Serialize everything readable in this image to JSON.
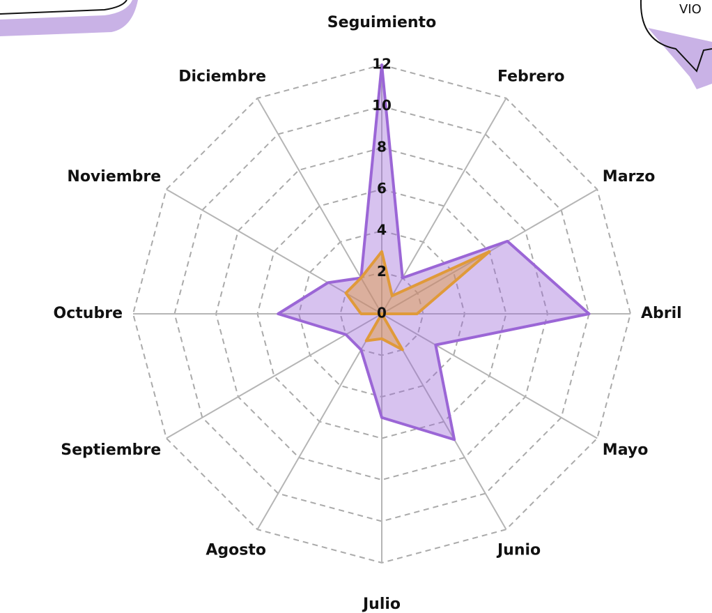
{
  "chart_data": {
    "type": "radar",
    "categories": [
      "Seguimiento",
      "Febrero",
      "Marzo",
      "Abril",
      "Mayo",
      "Junio",
      "Julio",
      "Agosto",
      "Septiembre",
      "Octubre",
      "Noviembre",
      "Diciembre"
    ],
    "series": [
      {
        "color": "#9b66d6",
        "values": [
          12,
          2,
          7,
          10,
          3,
          7,
          5,
          2,
          2,
          5,
          3,
          2
        ]
      },
      {
        "color": "#e09a3a",
        "values": [
          3,
          1,
          6,
          1.7,
          0,
          2,
          1.2,
          1.5,
          0,
          1,
          2,
          2
        ]
      }
    ],
    "rlim": [
      0,
      12
    ],
    "rticks": [
      0,
      2,
      4,
      6,
      8,
      10,
      12
    ],
    "grid": true,
    "annotation": "VIO"
  }
}
